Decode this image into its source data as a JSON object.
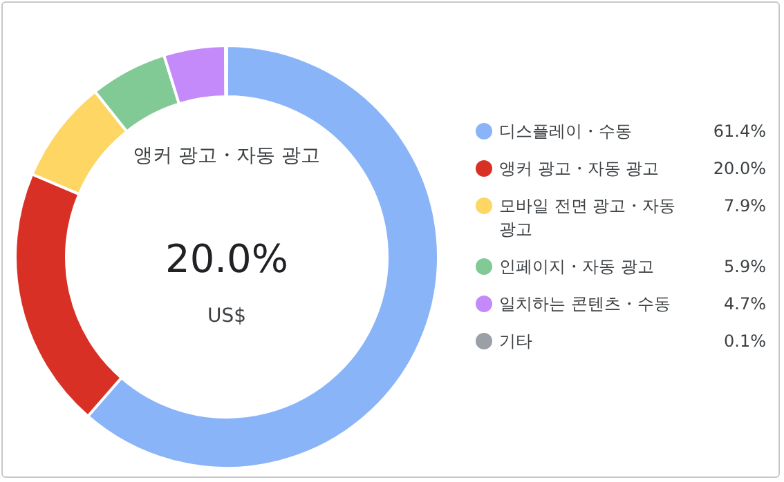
{
  "chart_data": {
    "type": "donut",
    "categories": [
      "디스플레이・수동",
      "앵커 광고・자동 광고",
      "모바일 전면 광고・자동 광고",
      "인페이지・자동 광고",
      "일치하는 콘텐츠・수동",
      "기타"
    ],
    "values": [
      61.4,
      20.0,
      7.9,
      5.9,
      4.7,
      0.1
    ],
    "colors": [
      "#8ab4f8",
      "#d93025",
      "#fdd663",
      "#81c995",
      "#c58af9",
      "#9aa0a6"
    ],
    "value_labels": [
      "61.4%",
      "20.0%",
      "7.9%",
      "5.9%",
      "4.7%",
      "0.1%"
    ],
    "legend": "right",
    "annotations": [
      "앵커 광고・자동 광고",
      "20.0%",
      "US$"
    ]
  }
}
